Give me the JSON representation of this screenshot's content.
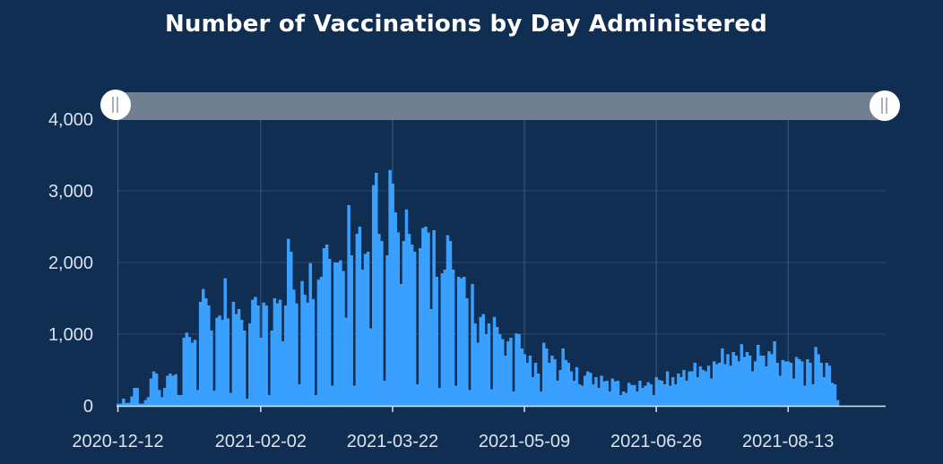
{
  "chart_data": {
    "type": "bar",
    "title": "Number of Vaccinations by Day Administered",
    "xlabel": "",
    "ylabel": "",
    "start_date": "2020-12-12",
    "end_date": "2021-09-17",
    "ylim": [
      0,
      4000
    ],
    "y_ticks": [
      "0",
      "1,000",
      "2,000",
      "3,000",
      "4,000"
    ],
    "x_ticks": [
      "2020-12-12",
      "2021-02-02",
      "2021-03-22",
      "2021-05-09",
      "2021-06-26",
      "2021-08-13"
    ],
    "grid": true,
    "bar_color": "#3aa0ff",
    "range_slider": {
      "from": "2020-12-12",
      "to": "2021-09-17"
    },
    "values": [
      30,
      30,
      100,
      40,
      40,
      130,
      250,
      250,
      30,
      30,
      80,
      120,
      380,
      480,
      450,
      220,
      120,
      250,
      420,
      450,
      420,
      440,
      150,
      150,
      950,
      1020,
      960,
      880,
      920,
      220,
      1450,
      1630,
      1500,
      1400,
      1050,
      210,
      1230,
      1260,
      1200,
      1780,
      1220,
      180,
      1450,
      1280,
      1350,
      1200,
      1050,
      100,
      1150,
      1480,
      1520,
      1400,
      950,
      1440,
      1400,
      150,
      1050,
      1500,
      1430,
      1480,
      900,
      1400,
      2330,
      2150,
      1620,
      1430,
      300,
      1740,
      1550,
      1440,
      1990,
      1490,
      150,
      1760,
      1800,
      2200,
      2250,
      2050,
      280,
      2000,
      2000,
      2030,
      1880,
      1230,
      2800,
      2100,
      280,
      2400,
      2500,
      1900,
      2120,
      2150,
      1080,
      3080,
      3250,
      2400,
      2300,
      350,
      2100,
      3290,
      3100,
      2700,
      2420,
      1700,
      2300,
      2740,
      2400,
      2250,
      2150,
      300,
      2200,
      2480,
      2500,
      2420,
      1350,
      2450,
      1800,
      250,
      1850,
      1900,
      2380,
      2300,
      1900,
      280,
      1800,
      1780,
      1800,
      1500,
      220,
      1700,
      1150,
      880,
      1240,
      1280,
      1000,
      1150,
      230,
      1240,
      1100,
      1000,
      930,
      700,
      900,
      950,
      200,
      1010,
      1000,
      800,
      720,
      600,
      700,
      400,
      600,
      450,
      200,
      880,
      800,
      600,
      700,
      650,
      350,
      500,
      800,
      640,
      600,
      480,
      350,
      540,
      300,
      280,
      420,
      480,
      460,
      300,
      400,
      250,
      420,
      340,
      350,
      200,
      380,
      340,
      350,
      150,
      200,
      180,
      320,
      290,
      290,
      200,
      350,
      250,
      280,
      330,
      300,
      150,
      400,
      360,
      350,
      300,
      480,
      280,
      400,
      300,
      450,
      400,
      500,
      350,
      480,
      480,
      600,
      400,
      550,
      500,
      480,
      560,
      380,
      620,
      580,
      600,
      800,
      580,
      720,
      560,
      750,
      700,
      620,
      860,
      680,
      750,
      700,
      480,
      620,
      850,
      700,
      700,
      550,
      760,
      720,
      900,
      600,
      420,
      640,
      620,
      620,
      600,
      380,
      680,
      650,
      620,
      280,
      650,
      600,
      300,
      820,
      720,
      600,
      400,
      600,
      560,
      320,
      300,
      80
    ]
  }
}
